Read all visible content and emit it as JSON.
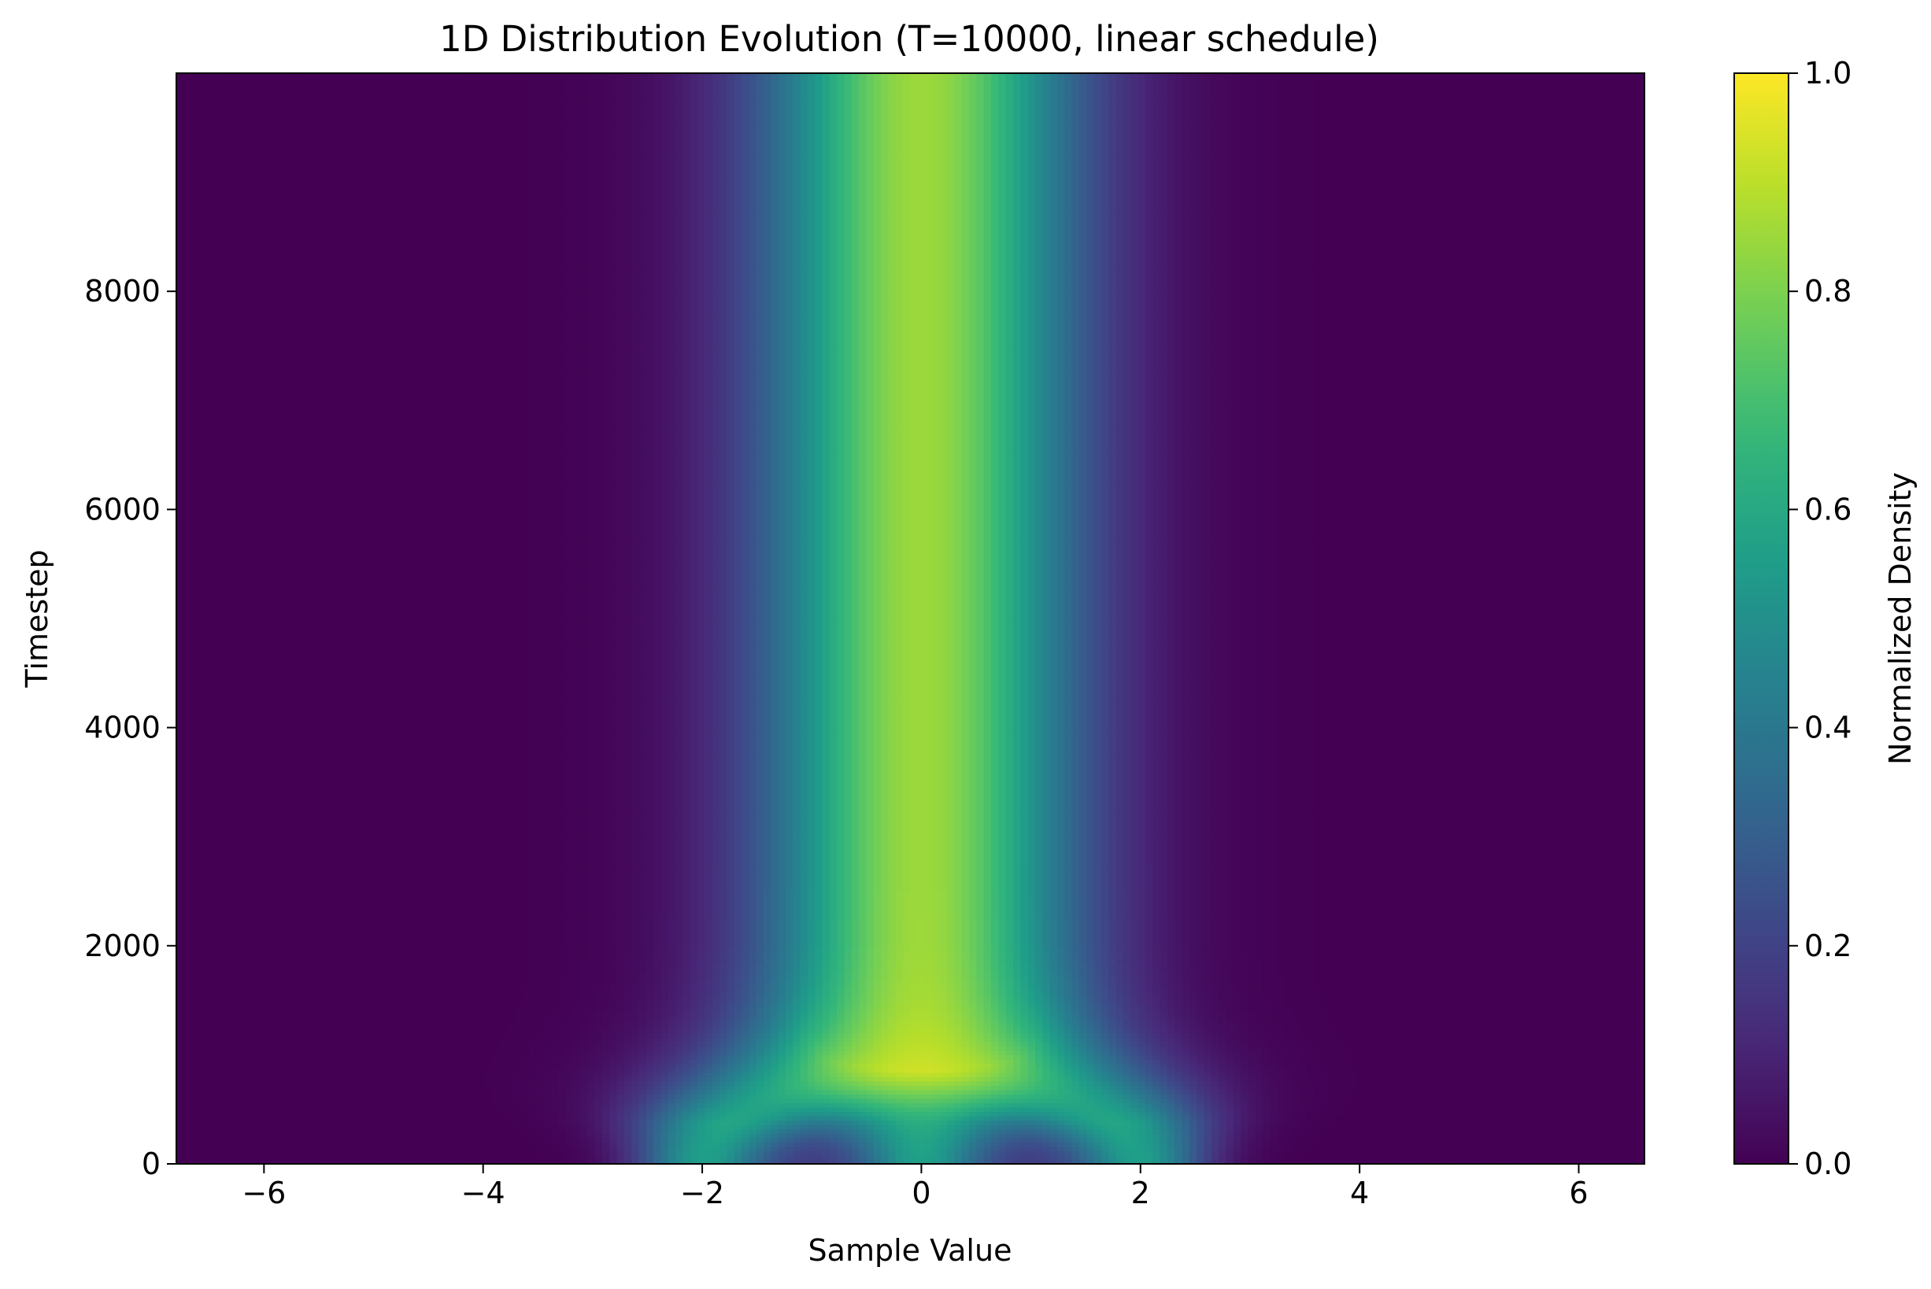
{
  "chart_data": {
    "type": "heatmap",
    "title": "1D Distribution Evolution (T=10000, linear schedule)",
    "xlabel": "Sample Value",
    "ylabel": "Timestep",
    "xlim": [
      -6.8,
      6.6
    ],
    "ylim": [
      0,
      10000
    ],
    "x_ticks": [
      -6,
      -4,
      -2,
      0,
      2,
      4,
      6
    ],
    "x_tick_labels": [
      "−6",
      "−4",
      "−2",
      "0",
      "2",
      "4",
      "6"
    ],
    "y_ticks": [
      0,
      2000,
      4000,
      6000,
      8000
    ],
    "y_tick_labels": [
      "0",
      "2000",
      "4000",
      "6000",
      "8000"
    ],
    "colormap": "viridis",
    "colorbar": {
      "label": "Normalized Density",
      "range": [
        0,
        1
      ],
      "ticks": [
        0.0,
        0.2,
        0.4,
        0.6,
        0.8,
        1.0
      ],
      "tick_labels": [
        "0.0",
        "0.2",
        "0.4",
        "0.6",
        "0.8",
        "1.0"
      ]
    },
    "grid": false,
    "initial_modes": [
      -2,
      -1,
      0,
      1,
      2
    ],
    "initial_mode_density": [
      0.55,
      0.12,
      0.55,
      0.12,
      0.55
    ],
    "stationary_peak_density": 0.85,
    "stationary_mean": 0,
    "stationary_std": 1
  }
}
